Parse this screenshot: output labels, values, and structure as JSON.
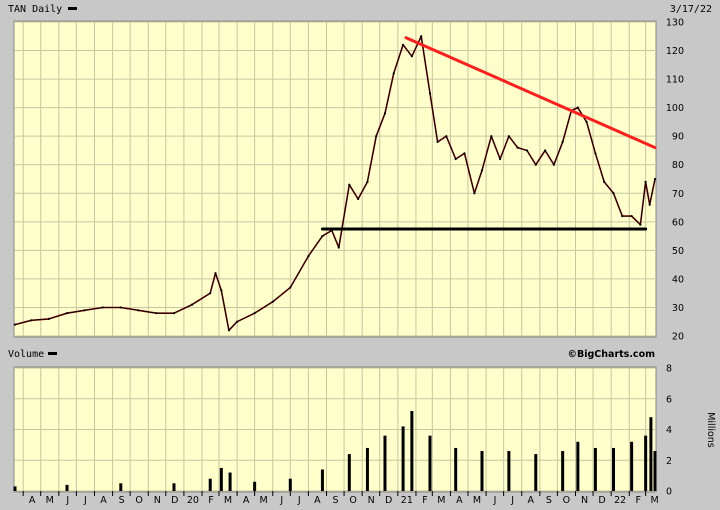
{
  "header": {
    "symbol_label": "TAN Daily",
    "date": "3/17/22",
    "volume_label": "Volume",
    "watermark": "©BigCharts.com"
  },
  "colors": {
    "panel_bg": "#ffffcc",
    "frame_bg": "#c8c8c8",
    "grid": "#c6c6a0",
    "price": "#000000",
    "price_up_tint": "#8b0000",
    "trendline_resistance": "#ff1e1e",
    "trendline_support": "#000000",
    "volume": "#000000"
  },
  "chart_data": [
    {
      "type": "line",
      "title": "TAN Daily",
      "series": [
        {
          "x": [
            "2019-03-18",
            "2019-04-15",
            "2019-05-15",
            "2019-06-15",
            "2019-07-15",
            "2019-08-15",
            "2019-09-15",
            "2019-10-15",
            "2019-11-15",
            "2019-12-15",
            "2020-01-15",
            "2020-02-15",
            "2020-02-24",
            "2020-03-05",
            "2020-03-18",
            "2020-04-01",
            "2020-05-01",
            "2020-06-01",
            "2020-07-01",
            "2020-08-01",
            "2020-08-25",
            "2020-09-10",
            "2020-09-22",
            "2020-10-10",
            "2020-10-25",
            "2020-11-10",
            "2020-11-25",
            "2020-12-10",
            "2020-12-25",
            "2021-01-10",
            "2021-01-25",
            "2021-02-10",
            "2021-02-25",
            "2021-03-10",
            "2021-03-25",
            "2021-04-10",
            "2021-04-25",
            "2021-05-12",
            "2021-05-25",
            "2021-06-10",
            "2021-06-25",
            "2021-07-10",
            "2021-07-25",
            "2021-08-10",
            "2021-08-25",
            "2021-09-10",
            "2021-09-25",
            "2021-10-10",
            "2021-10-25",
            "2021-11-05",
            "2021-11-20",
            "2021-12-05",
            "2021-12-20",
            "2022-01-05",
            "2022-01-20",
            "2022-02-05",
            "2022-02-20",
            "2022-03-01",
            "2022-03-08",
            "2022-03-17"
          ],
          "values": [
            24,
            25.5,
            26,
            28,
            29,
            30,
            30,
            29,
            28,
            28,
            31,
            35,
            42,
            36,
            22,
            25,
            28,
            32,
            37,
            48,
            55,
            57,
            51,
            73,
            68,
            74,
            90,
            98,
            112,
            122,
            118,
            125,
            105,
            88,
            90,
            82,
            84,
            70,
            78,
            90,
            82,
            90,
            86,
            85,
            80,
            85,
            80,
            88,
            99,
            100,
            95,
            84,
            74,
            70,
            62,
            62,
            59,
            74,
            66,
            75
          ]
        }
      ],
      "yaxis_side": "right",
      "ylim": [
        20,
        130
      ],
      "yticks": [
        20,
        30,
        40,
        50,
        60,
        70,
        80,
        90,
        100,
        110,
        120,
        130
      ],
      "xlim": [
        "2019-03-18",
        "2022-03-17"
      ],
      "grid": true,
      "annotations": [
        {
          "kind": "trendline",
          "color": "red",
          "from": [
            "2021-01-15",
            124.5
          ],
          "to": [
            "2022-03-17",
            86
          ]
        },
        {
          "kind": "support_line",
          "color": "black",
          "from": [
            "2020-08-25",
            57.5
          ],
          "to": [
            "2022-03-01",
            57.5
          ]
        }
      ],
      "xtick_labels": [
        {
          "label": "A",
          "date": "2019-04-01"
        },
        {
          "label": "M",
          "date": "2019-05-01"
        },
        {
          "label": "J",
          "date": "2019-06-01"
        },
        {
          "label": "J",
          "date": "2019-07-01"
        },
        {
          "label": "A",
          "date": "2019-08-01"
        },
        {
          "label": "S",
          "date": "2019-09-01"
        },
        {
          "label": "O",
          "date": "2019-10-01"
        },
        {
          "label": "N",
          "date": "2019-11-01"
        },
        {
          "label": "D",
          "date": "2019-12-01"
        },
        {
          "label": "20",
          "date": "2020-01-01"
        },
        {
          "label": "F",
          "date": "2020-02-01"
        },
        {
          "label": "M",
          "date": "2020-03-01"
        },
        {
          "label": "A",
          "date": "2020-04-01"
        },
        {
          "label": "M",
          "date": "2020-05-01"
        },
        {
          "label": "J",
          "date": "2020-06-01"
        },
        {
          "label": "J",
          "date": "2020-07-01"
        },
        {
          "label": "A",
          "date": "2020-08-01"
        },
        {
          "label": "S",
          "date": "2020-09-01"
        },
        {
          "label": "O",
          "date": "2020-10-01"
        },
        {
          "label": "N",
          "date": "2020-11-01"
        },
        {
          "label": "D",
          "date": "2020-12-01"
        },
        {
          "label": "21",
          "date": "2021-01-01"
        },
        {
          "label": "F",
          "date": "2021-02-01"
        },
        {
          "label": "M",
          "date": "2021-03-01"
        },
        {
          "label": "A",
          "date": "2021-04-01"
        },
        {
          "label": "M",
          "date": "2021-05-01"
        },
        {
          "label": "J",
          "date": "2021-06-01"
        },
        {
          "label": "J",
          "date": "2021-07-01"
        },
        {
          "label": "A",
          "date": "2021-08-01"
        },
        {
          "label": "S",
          "date": "2021-09-01"
        },
        {
          "label": "O",
          "date": "2021-10-01"
        },
        {
          "label": "N",
          "date": "2021-11-01"
        },
        {
          "label": "D",
          "date": "2021-12-01"
        },
        {
          "label": "22",
          "date": "2022-01-01"
        },
        {
          "label": "F",
          "date": "2022-02-01"
        },
        {
          "label": "M",
          "date": "2022-03-01"
        }
      ]
    },
    {
      "type": "bar",
      "title": "Volume",
      "ylabel": "Millions",
      "yaxis_side": "right",
      "ylim": [
        0,
        8
      ],
      "yticks": [
        0,
        2,
        4,
        6,
        8
      ],
      "series": [
        {
          "x": [
            "2019-03-18",
            "2019-06-15",
            "2019-09-15",
            "2019-12-15",
            "2020-02-15",
            "2020-03-05",
            "2020-03-20",
            "2020-05-01",
            "2020-07-01",
            "2020-08-25",
            "2020-10-10",
            "2020-11-10",
            "2020-12-10",
            "2021-01-10",
            "2021-01-25",
            "2021-02-25",
            "2021-04-10",
            "2021-05-25",
            "2021-07-10",
            "2021-08-25",
            "2021-10-10",
            "2021-11-05",
            "2021-12-05",
            "2022-01-05",
            "2022-02-05",
            "2022-03-01",
            "2022-03-10",
            "2022-03-17"
          ],
          "values": [
            0.3,
            0.4,
            0.5,
            0.5,
            0.8,
            1.5,
            1.2,
            0.6,
            0.8,
            1.4,
            2.4,
            2.8,
            3.6,
            4.2,
            5.2,
            3.6,
            2.8,
            2.6,
            2.6,
            2.4,
            2.6,
            3.2,
            2.8,
            2.8,
            3.2,
            3.6,
            4.8,
            2.6
          ]
        }
      ]
    }
  ]
}
